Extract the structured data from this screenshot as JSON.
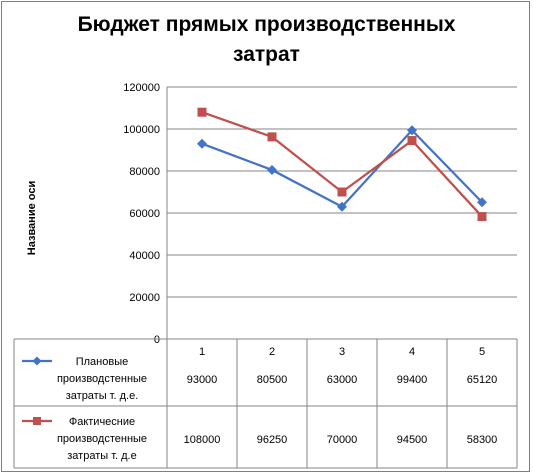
{
  "chart_data": {
    "type": "line",
    "title_lines": [
      "Бюджет прямых производственных",
      "затрат"
    ],
    "ylabel": "Название оси",
    "xlabel": "",
    "categories": [
      "1",
      "2",
      "3",
      "4",
      "5"
    ],
    "ylim": [
      0,
      120000
    ],
    "yticks": [
      "0",
      "20000",
      "40000",
      "60000",
      "80000",
      "100000",
      "120000"
    ],
    "grid": true,
    "legend_placement": "data-table-left",
    "series": [
      {
        "name_lines": [
          "Плановые",
          "производстенные",
          "затраты т. д.е."
        ],
        "values": [
          93000,
          80500,
          63000,
          99400,
          65120
        ],
        "value_labels": [
          "93000",
          "80500",
          "63000",
          "99400",
          "65120"
        ],
        "color": "#4472c4",
        "marker": "diamond"
      },
      {
        "name_lines": [
          "Фактичесние",
          "производстенные",
          "затраты т. д.е"
        ],
        "values": [
          108000,
          96250,
          70000,
          94500,
          58300
        ],
        "value_labels": [
          "108000",
          "96250",
          "70000",
          "94500",
          "58300"
        ],
        "color": "#c0504d",
        "marker": "square"
      }
    ]
  }
}
